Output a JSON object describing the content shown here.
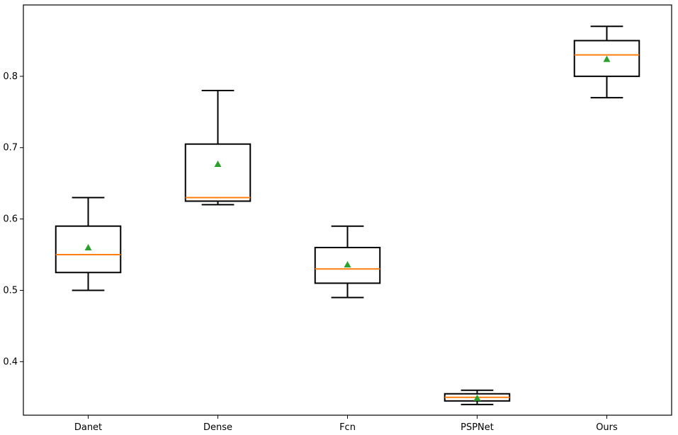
{
  "chart_data": {
    "type": "box",
    "title": "",
    "xlabel": "",
    "ylabel": "",
    "categories": [
      "Danet",
      "Dense",
      "Fcn",
      "PSPNet",
      "Ours"
    ],
    "boxes": [
      {
        "name": "Danet",
        "whisker_low": 0.5,
        "q1": 0.525,
        "median": 0.55,
        "q3": 0.59,
        "whisker_high": 0.63,
        "mean": 0.56
      },
      {
        "name": "Dense",
        "whisker_low": 0.62,
        "q1": 0.625,
        "median": 0.63,
        "q3": 0.705,
        "whisker_high": 0.78,
        "mean": 0.677
      },
      {
        "name": "Fcn",
        "whisker_low": 0.49,
        "q1": 0.51,
        "median": 0.53,
        "q3": 0.56,
        "whisker_high": 0.59,
        "mean": 0.536
      },
      {
        "name": "PSPNet",
        "whisker_low": 0.34,
        "q1": 0.345,
        "median": 0.35,
        "q3": 0.355,
        "whisker_high": 0.36,
        "mean": 0.349
      },
      {
        "name": "Ours",
        "whisker_low": 0.77,
        "q1": 0.8,
        "median": 0.83,
        "q3": 0.85,
        "whisker_high": 0.87,
        "mean": 0.824
      }
    ],
    "yticks": [
      0.4,
      0.5,
      0.6,
      0.7,
      0.8
    ],
    "ytick_labels": [
      "0.4",
      "0.5",
      "0.6",
      "0.7",
      "0.8"
    ],
    "ylim": [
      0.325,
      0.9
    ],
    "grid": false,
    "legend": "none",
    "colors": {
      "median": "#ff7f0e",
      "mean": "#2ca02c",
      "box": "#000000"
    }
  }
}
